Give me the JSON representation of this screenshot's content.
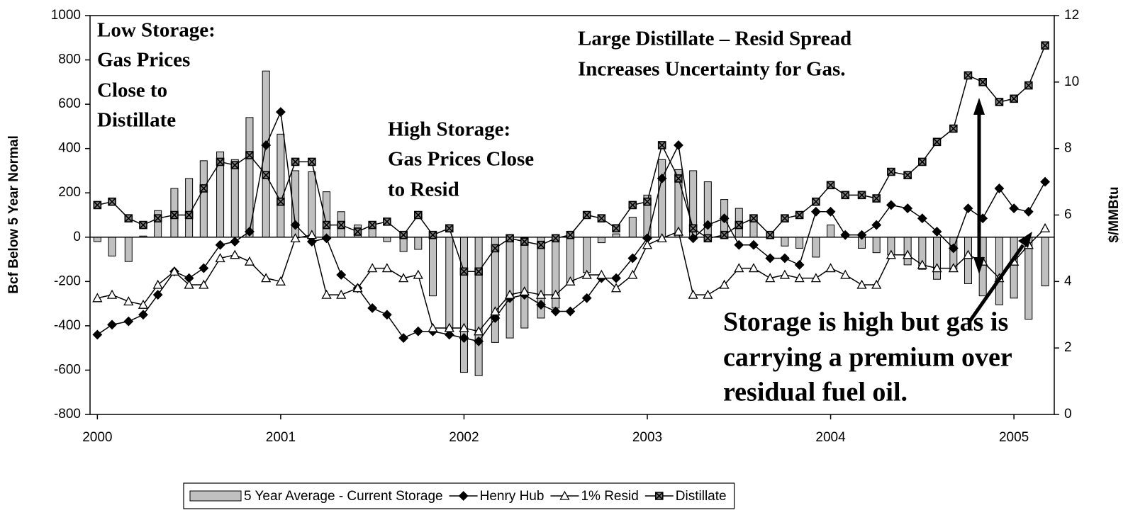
{
  "chart_data": {
    "type": "combo",
    "y_label": "Bcf Below 5 Year Normal",
    "y2_label": "$/MMBtu",
    "annotations": [
      {
        "lines": [
          "Low  Storage:",
          "Gas Prices",
          "Close to",
          "Distillate"
        ]
      },
      {
        "lines": [
          "High Storage:",
          "Gas Prices Close",
          "to Resid"
        ]
      },
      {
        "lines": [
          "Large Distillate – Resid Spread",
          "Increases  Uncertainty for Gas."
        ]
      },
      {
        "lines": [
          "Storage is high but gas is",
          "carrying a premium over",
          "residual fuel oil."
        ]
      }
    ],
    "x": [
      2000,
      2000.08,
      2000.17,
      2000.25,
      2000.33,
      2000.42,
      2000.5,
      2000.58,
      2000.67,
      2000.75,
      2000.83,
      2000.92,
      2001,
      2001.08,
      2001.17,
      2001.25,
      2001.33,
      2001.42,
      2001.5,
      2001.58,
      2001.67,
      2001.75,
      2001.83,
      2001.92,
      2002,
      2002.08,
      2002.17,
      2002.25,
      2002.33,
      2002.42,
      2002.5,
      2002.58,
      2002.67,
      2002.75,
      2002.83,
      2002.92,
      2003,
      2003.08,
      2003.17,
      2003.25,
      2003.33,
      2003.42,
      2003.5,
      2003.58,
      2003.67,
      2003.75,
      2003.83,
      2003.92,
      2004,
      2004.08,
      2004.17,
      2004.25,
      2004.33,
      2004.42,
      2004.5,
      2004.58,
      2004.67,
      2004.75,
      2004.83,
      2004.92,
      2005,
      2005.08,
      2005.17
    ],
    "xlim": [
      1999.96,
      2005.22
    ],
    "xticks": [
      2000,
      2001,
      2002,
      2003,
      2004,
      2005
    ],
    "ylim": [
      -800,
      1000
    ],
    "yticks": [
      -800,
      -600,
      -400,
      -200,
      0,
      200,
      400,
      600,
      800,
      1000
    ],
    "y2lim": [
      0,
      12
    ],
    "y2ticks": [
      0,
      2,
      4,
      6,
      8,
      10,
      12
    ],
    "grid": false,
    "legend": "bottom",
    "series": [
      {
        "name": "5 Year Average - Current Storage",
        "type": "bar",
        "color": "#c0c0c0",
        "values": [
          -20,
          -85,
          -110,
          5,
          120,
          220,
          265,
          345,
          385,
          350,
          540,
          750,
          465,
          300,
          295,
          205,
          115,
          55,
          45,
          -20,
          -65,
          -55,
          -265,
          -420,
          -610,
          -625,
          -475,
          -455,
          -410,
          -365,
          -320,
          -215,
          -160,
          -25,
          15,
          90,
          190,
          350,
          305,
          300,
          250,
          170,
          130,
          100,
          25,
          -40,
          -50,
          -90,
          55,
          5,
          -50,
          -70,
          -80,
          -125,
          -145,
          -190,
          -155,
          -210,
          -265,
          -305,
          -275,
          -370,
          -220
        ]
      },
      {
        "name": "Henry Hub",
        "type": "line",
        "axis": "y2",
        "marker": "diamond",
        "color": "#000000",
        "values": [
          2.4,
          2.7,
          2.8,
          3.0,
          3.6,
          4.3,
          4.1,
          4.4,
          5.1,
          5.2,
          5.5,
          8.1,
          9.1,
          5.7,
          5.2,
          5.3,
          4.2,
          3.8,
          3.2,
          3.0,
          2.3,
          2.5,
          2.5,
          2.4,
          2.3,
          2.2,
          2.9,
          3.5,
          3.6,
          3.3,
          3.1,
          3.1,
          3.5,
          4.1,
          4.1,
          4.7,
          5.3,
          7.1,
          8.1,
          5.3,
          5.7,
          5.9,
          5.1,
          5.1,
          4.7,
          4.7,
          4.5,
          6.1,
          6.1,
          5.4,
          5.4,
          5.7,
          6.3,
          6.2,
          5.9,
          5.5,
          5.0,
          6.2,
          5.9,
          6.8,
          6.2,
          6.1,
          7.0
        ]
      },
      {
        "name": "1% Resid",
        "type": "line",
        "axis": "y2",
        "marker": "triangle",
        "color": "#000000",
        "values": [
          3.5,
          3.6,
          3.4,
          3.3,
          3.9,
          4.3,
          3.9,
          3.9,
          4.7,
          4.8,
          4.6,
          4.1,
          4.0,
          5.3,
          5.4,
          3.6,
          3.6,
          3.8,
          4.4,
          4.4,
          4.1,
          4.2,
          2.6,
          2.6,
          2.6,
          2.5,
          3.1,
          3.6,
          3.7,
          3.6,
          3.6,
          4.0,
          4.2,
          4.2,
          3.8,
          4.2,
          5.1,
          5.3,
          5.5,
          3.6,
          3.6,
          3.9,
          4.4,
          4.4,
          4.1,
          4.2,
          4.1,
          4.1,
          4.4,
          4.2,
          3.9,
          3.9,
          4.8,
          4.8,
          4.5,
          4.4,
          4.4,
          4.8,
          4.6,
          4.1,
          4.6,
          5.1,
          5.6
        ]
      },
      {
        "name": "Distillate",
        "type": "line",
        "axis": "y2",
        "marker": "square-x",
        "color": "#000000",
        "values": [
          6.3,
          6.4,
          5.9,
          5.7,
          5.9,
          6.0,
          6.0,
          6.8,
          7.6,
          7.5,
          7.8,
          7.2,
          6.4,
          7.6,
          7.6,
          5.7,
          5.7,
          5.5,
          5.7,
          5.8,
          5.4,
          6.0,
          5.4,
          5.6,
          4.3,
          4.3,
          5.0,
          5.3,
          5.2,
          5.1,
          5.3,
          5.4,
          6.0,
          5.9,
          5.6,
          6.3,
          6.4,
          8.1,
          7.1,
          5.6,
          5.3,
          5.4,
          5.7,
          5.9,
          5.4,
          5.9,
          6.0,
          6.4,
          6.9,
          6.6,
          6.6,
          6.5,
          7.3,
          7.2,
          7.6,
          8.2,
          8.6,
          10.2,
          10.0,
          9.4,
          9.5,
          9.9,
          11.1
        ]
      }
    ]
  }
}
